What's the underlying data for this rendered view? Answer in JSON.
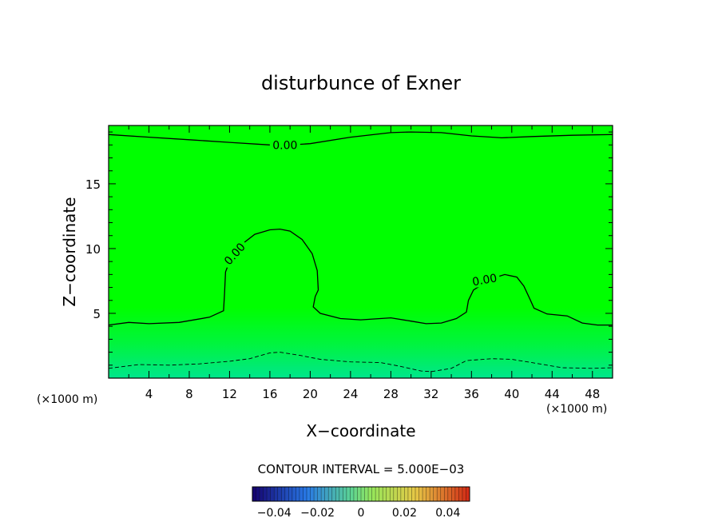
{
  "chart_data": {
    "type": "heatmap",
    "title": "disturbunce of Exner",
    "xlabel": "X−coordinate",
    "ylabel": "Z−coordinate",
    "x_unit": "(×1000 m)",
    "x_unit_right": "(×1000 m)",
    "xlim": [
      0,
      50
    ],
    "ylim": [
      0,
      19.5
    ],
    "x_ticks": [
      "4",
      "8",
      "12",
      "16",
      "20",
      "24",
      "28",
      "32",
      "36",
      "40",
      "44",
      "48"
    ],
    "y_ticks": [
      "5",
      "10",
      "15"
    ],
    "contour_interval_text": "CONTOUR INTERVAL = 5.000E−03",
    "contours": [
      {
        "level_label": "0.00",
        "style": "solid",
        "points": [
          [
            0,
            18.8
          ],
          [
            4,
            18.6
          ],
          [
            8,
            18.4
          ],
          [
            12,
            18.2
          ],
          [
            16,
            18.0
          ],
          [
            17,
            17.95
          ],
          [
            20,
            18.1
          ],
          [
            24,
            18.6
          ],
          [
            28,
            18.95
          ],
          [
            30,
            19.0
          ],
          [
            33,
            18.95
          ],
          [
            36,
            18.7
          ],
          [
            39,
            18.55
          ],
          [
            42,
            18.65
          ],
          [
            46,
            18.75
          ],
          [
            50,
            18.8
          ]
        ],
        "label_at": [
          17.5,
          18.0
        ]
      },
      {
        "level_label": "0.00",
        "style": "solid",
        "points": [
          [
            0,
            4.1
          ],
          [
            2,
            4.3
          ],
          [
            4,
            4.2
          ],
          [
            7,
            4.3
          ],
          [
            10,
            4.7
          ],
          [
            11.4,
            5.2
          ],
          [
            11.5,
            6.5
          ],
          [
            11.6,
            8.2
          ],
          [
            12,
            9.0
          ],
          [
            13,
            10.2
          ],
          [
            14.5,
            11.1
          ],
          [
            16,
            11.45
          ],
          [
            17,
            11.5
          ],
          [
            18,
            11.35
          ],
          [
            19.2,
            10.7
          ],
          [
            20.2,
            9.6
          ],
          [
            20.7,
            8.3
          ],
          [
            20.8,
            6.8
          ],
          [
            20.5,
            6.3
          ],
          [
            20.3,
            5.5
          ],
          [
            21,
            5.0
          ],
          [
            23,
            4.6
          ],
          [
            25,
            4.5
          ],
          [
            28,
            4.65
          ],
          [
            30,
            4.4
          ],
          [
            31.5,
            4.2
          ],
          [
            33,
            4.25
          ],
          [
            34.5,
            4.6
          ],
          [
            35.5,
            5.1
          ],
          [
            35.7,
            6.0
          ],
          [
            36.2,
            6.8
          ],
          [
            37.2,
            7.3
          ],
          [
            38.3,
            7.75
          ],
          [
            39.3,
            8.0
          ],
          [
            40.5,
            7.8
          ],
          [
            41.2,
            7.1
          ],
          [
            41.8,
            6.1
          ],
          [
            42.2,
            5.4
          ],
          [
            43.5,
            4.95
          ],
          [
            45.5,
            4.8
          ],
          [
            47,
            4.25
          ],
          [
            48.5,
            4.1
          ],
          [
            50,
            4.1
          ]
        ],
        "labels": [
          [
            12.5,
            9.6
          ],
          [
            37.3,
            7.6
          ]
        ]
      },
      {
        "level_label": "",
        "style": "dashed",
        "points": [
          [
            0,
            0.75
          ],
          [
            3,
            1.05
          ],
          [
            6,
            1.0
          ],
          [
            9,
            1.1
          ],
          [
            12,
            1.3
          ],
          [
            14,
            1.5
          ],
          [
            16,
            1.95
          ],
          [
            17,
            2.0
          ],
          [
            19,
            1.75
          ],
          [
            21,
            1.45
          ],
          [
            24,
            1.25
          ],
          [
            27,
            1.2
          ],
          [
            29,
            0.9
          ],
          [
            31,
            0.55
          ],
          [
            32,
            0.5
          ],
          [
            34,
            0.75
          ],
          [
            35.5,
            1.35
          ],
          [
            38,
            1.5
          ],
          [
            40,
            1.45
          ],
          [
            42,
            1.2
          ],
          [
            45,
            0.8
          ],
          [
            48,
            0.75
          ],
          [
            50,
            0.8
          ]
        ]
      }
    ],
    "colorbar": {
      "range": [
        -0.05,
        0.05
      ],
      "tick_labels": [
        "−0.04",
        "−0.02",
        "0",
        "0.02",
        "0.04"
      ],
      "tick_values": [
        -0.04,
        -0.02,
        0,
        0.02,
        0.04
      ]
    },
    "colors": {
      "field_main": "#00ff00",
      "field_bottom": "#00e68c",
      "contour": "#000000"
    }
  }
}
